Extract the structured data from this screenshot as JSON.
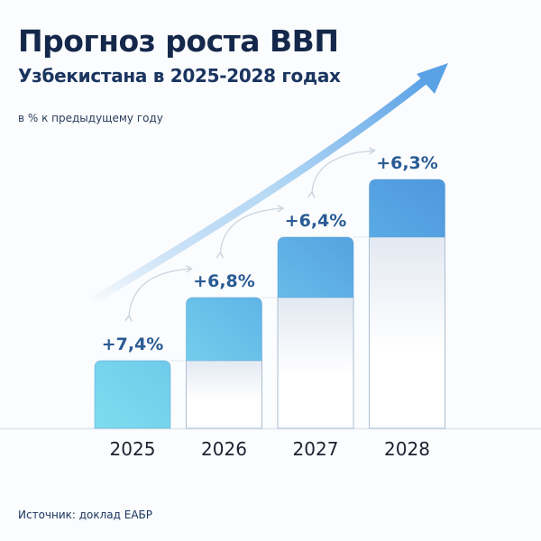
{
  "chart_data": {
    "type": "bar",
    "title": "Прогноз роста ВВП",
    "subtitle": "Узбекистана в 2025-2028 годах",
    "ylabel": "в % к предыдущему году",
    "categories": [
      "2025",
      "2026",
      "2027",
      "2028"
    ],
    "values": [
      7.4,
      6.8,
      6.4,
      6.3
    ],
    "data_labels": [
      "+7,4%",
      "+6,8%",
      "+6,4%",
      "+6,3%"
    ],
    "note": "stacked step bars; cumulative growth shown as rising steps",
    "grid": false,
    "legend": "none",
    "colors": {
      "bar_start": "#7fdcee",
      "bar_end": "#4f97de",
      "label": "#2a5b94",
      "arrow": "#5aa2e6"
    }
  },
  "source": "Источник: доклад ЕАБР"
}
